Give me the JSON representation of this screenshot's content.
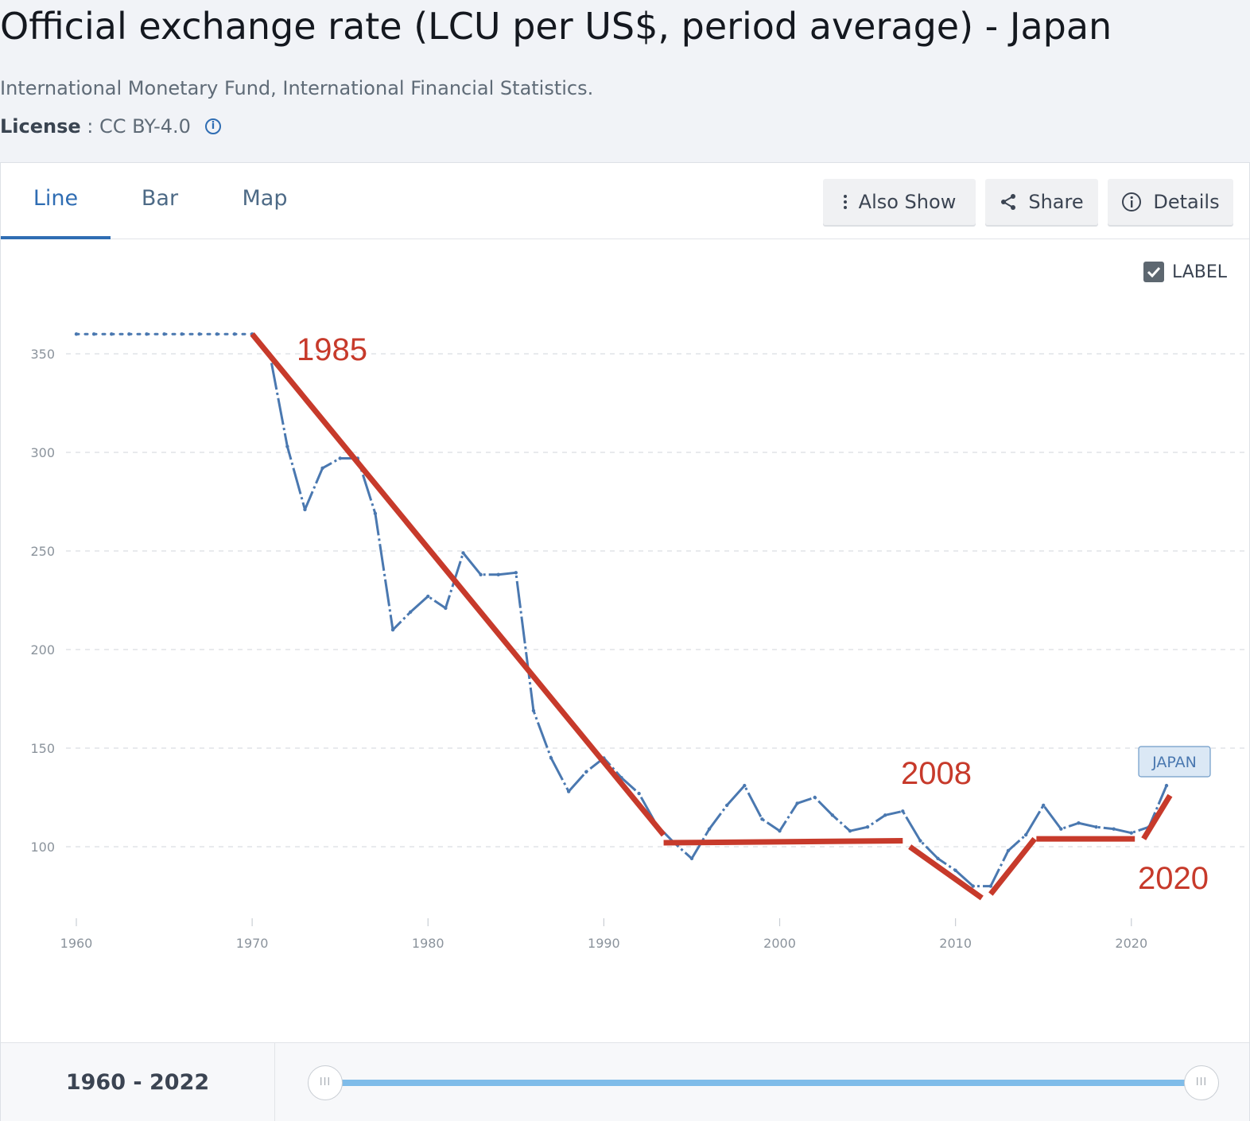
{
  "header": {
    "title": "Official exchange rate (LCU per US$, period average) - Japan",
    "source": "International Monetary Fund, International Financial Statistics.",
    "license_label": "License",
    "license_sep": " : ",
    "license_value": "CC BY-4.0",
    "info_icon": "info-icon"
  },
  "tabs": [
    {
      "label": "Line",
      "active": true
    },
    {
      "label": "Bar",
      "active": false
    },
    {
      "label": "Map",
      "active": false
    }
  ],
  "toolbar": {
    "also_show_label": "Also Show",
    "share_label": "Share",
    "details_label": "Details"
  },
  "label_toggle": {
    "label": "LABEL",
    "checked": true
  },
  "chart_data": {
    "type": "line",
    "title": "",
    "xlabel": "",
    "ylabel": "",
    "xlim": [
      1960,
      2022
    ],
    "ylim": [
      70,
      370
    ],
    "x_ticks": [
      1960,
      1970,
      1980,
      1990,
      2000,
      2010,
      2020
    ],
    "y_ticks": [
      100,
      150,
      200,
      250,
      300,
      350
    ],
    "grid": "horizontal dashed",
    "series": [
      {
        "name": "JAPAN",
        "color": "#4a78b0",
        "x": [
          1960,
          1961,
          1962,
          1963,
          1964,
          1965,
          1966,
          1967,
          1968,
          1969,
          1970,
          1971,
          1972,
          1973,
          1974,
          1975,
          1976,
          1977,
          1978,
          1979,
          1980,
          1981,
          1982,
          1983,
          1984,
          1985,
          1986,
          1987,
          1988,
          1989,
          1990,
          1991,
          1992,
          1993,
          1994,
          1995,
          1996,
          1997,
          1998,
          1999,
          2000,
          2001,
          2002,
          2003,
          2004,
          2005,
          2006,
          2007,
          2008,
          2009,
          2010,
          2011,
          2012,
          2013,
          2014,
          2015,
          2016,
          2017,
          2018,
          2019,
          2020,
          2021,
          2022
        ],
        "values": [
          360,
          360,
          360,
          360,
          360,
          360,
          360,
          360,
          360,
          360,
          360,
          350,
          303,
          271,
          292,
          297,
          297,
          269,
          210,
          219,
          227,
          221,
          249,
          238,
          238,
          239,
          169,
          145,
          128,
          138,
          145,
          135,
          127,
          111,
          102,
          94,
          109,
          121,
          131,
          114,
          108,
          122,
          125,
          116,
          108,
          110,
          116,
          118,
          103,
          94,
          88,
          80,
          80,
          98,
          106,
          121,
          109,
          112,
          110,
          109,
          107,
          110,
          131
        ]
      }
    ],
    "annotations": {
      "color": "#c73a2b",
      "labels": [
        {
          "text": "1985"
        },
        {
          "text": "2008"
        },
        {
          "text": "2020"
        }
      ],
      "trend_segments": [
        {
          "x": [
            1970,
            1993.4
          ],
          "y": [
            360,
            106
          ]
        },
        {
          "x": [
            1993.4,
            2007
          ],
          "y": [
            102,
            103
          ]
        },
        {
          "x": [
            2007.4,
            2011.5
          ],
          "y": [
            100,
            74
          ]
        },
        {
          "x": [
            2012,
            2014.5
          ],
          "y": [
            76,
            104
          ]
        },
        {
          "x": [
            2014.6,
            2020.2
          ],
          "y": [
            104,
            104
          ]
        },
        {
          "x": [
            2020.7,
            2022.2
          ],
          "y": [
            104,
            126
          ]
        }
      ]
    },
    "series_label": "JAPAN"
  },
  "range": {
    "label_start": "1960",
    "label_sep": " - ",
    "label_end": "2022",
    "handle_glyph": "III"
  }
}
